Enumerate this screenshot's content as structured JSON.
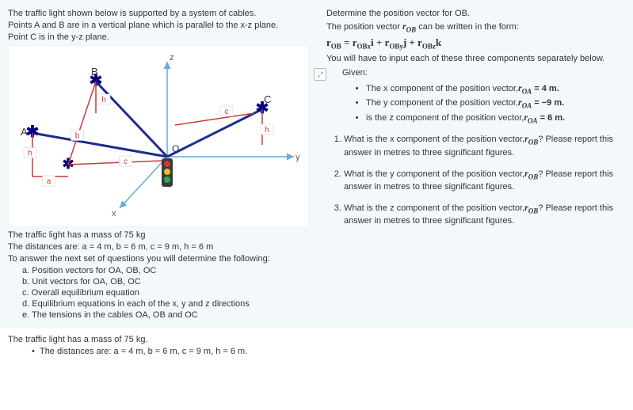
{
  "left": {
    "intro1": "The traffic light shown below is supported by a system of cables.",
    "intro2": "Points A and B are in a vertical plane which is parallel to the x-z plane.",
    "intro3": "Point C is in the y-z plane.",
    "diagram": {
      "labels": {
        "A": "A",
        "B": "B",
        "C": "C",
        "O": "O",
        "x": "x",
        "y": "y",
        "z": "z",
        "a": "a",
        "b": "b",
        "c": "c",
        "h": "h"
      },
      "colors": {
        "axis": "#6aa9d6",
        "cable": "#1a2c8f",
        "dim": "#c93a3a",
        "star": "#000080",
        "light_body": "#3a3a3a",
        "red": "#d63333",
        "yellow": "#e6c22a",
        "green": "#2faa4a"
      }
    },
    "mass_line": "The traffic light has a mass of 75 kg",
    "distances_line": "The distances are: a = 4 m, b = 6 m, c = 9 m, h = 6 m",
    "next_set_line": "To answer the next set of questions you will determine the following:",
    "steps": {
      "a": "a. Position vectors for OA, OB, OC",
      "b": "b. Unit vectors for OA, OB, OC",
      "c": "c. Overall equilibrium equation",
      "d": "d. Equilibrium equations in each of the x, y and z directions",
      "e": "e. The tensions in the cables OA, OB and OC"
    }
  },
  "below": {
    "mass_line": "The traffic light has a mass of 75 kg.",
    "bullet": "The distances are: a = 4 m, b = 6 m, c = 9 m, h = 6 m."
  },
  "right": {
    "title": "Determine the position vector for OB.",
    "form_line_pre": "The position vector ",
    "form_line_rob": "r",
    "form_line_sub": "OB",
    "form_line_post": " can be written in the form:",
    "eq": "rOB = rOBxi + rOByj + rOBzk",
    "input_line": "You will have to input each of these three components separately below.",
    "given_label": "Given:",
    "givens": {
      "g1_pre": "The x component of the position vector,",
      "g1_sym": "rOA",
      "g1_val": " = 4 m.",
      "g2_pre": "The y component of the position vector,",
      "g2_sym": "rOA",
      "g2_val": " = −9 m.",
      "g3_pre": "is the z component of the position vector,",
      "g3_sym": "rOA",
      "g3_val": " = 6 m."
    },
    "questions": {
      "q1_pre": "What is the x component of the position vector,",
      "q1_sym": "rOB",
      "q1_post": "? Please report this answer in metres to three significant figures.",
      "q2_pre": "What is the y component of the position vector,",
      "q2_sym": "rOB",
      "q2_post": "? Please report this answer in metres to three significant figures.",
      "q3_pre": "What is the z component of the position vector,",
      "q3_sym": "rOB",
      "q3_post": "? Please report this answer in metres to three significant figures."
    }
  }
}
